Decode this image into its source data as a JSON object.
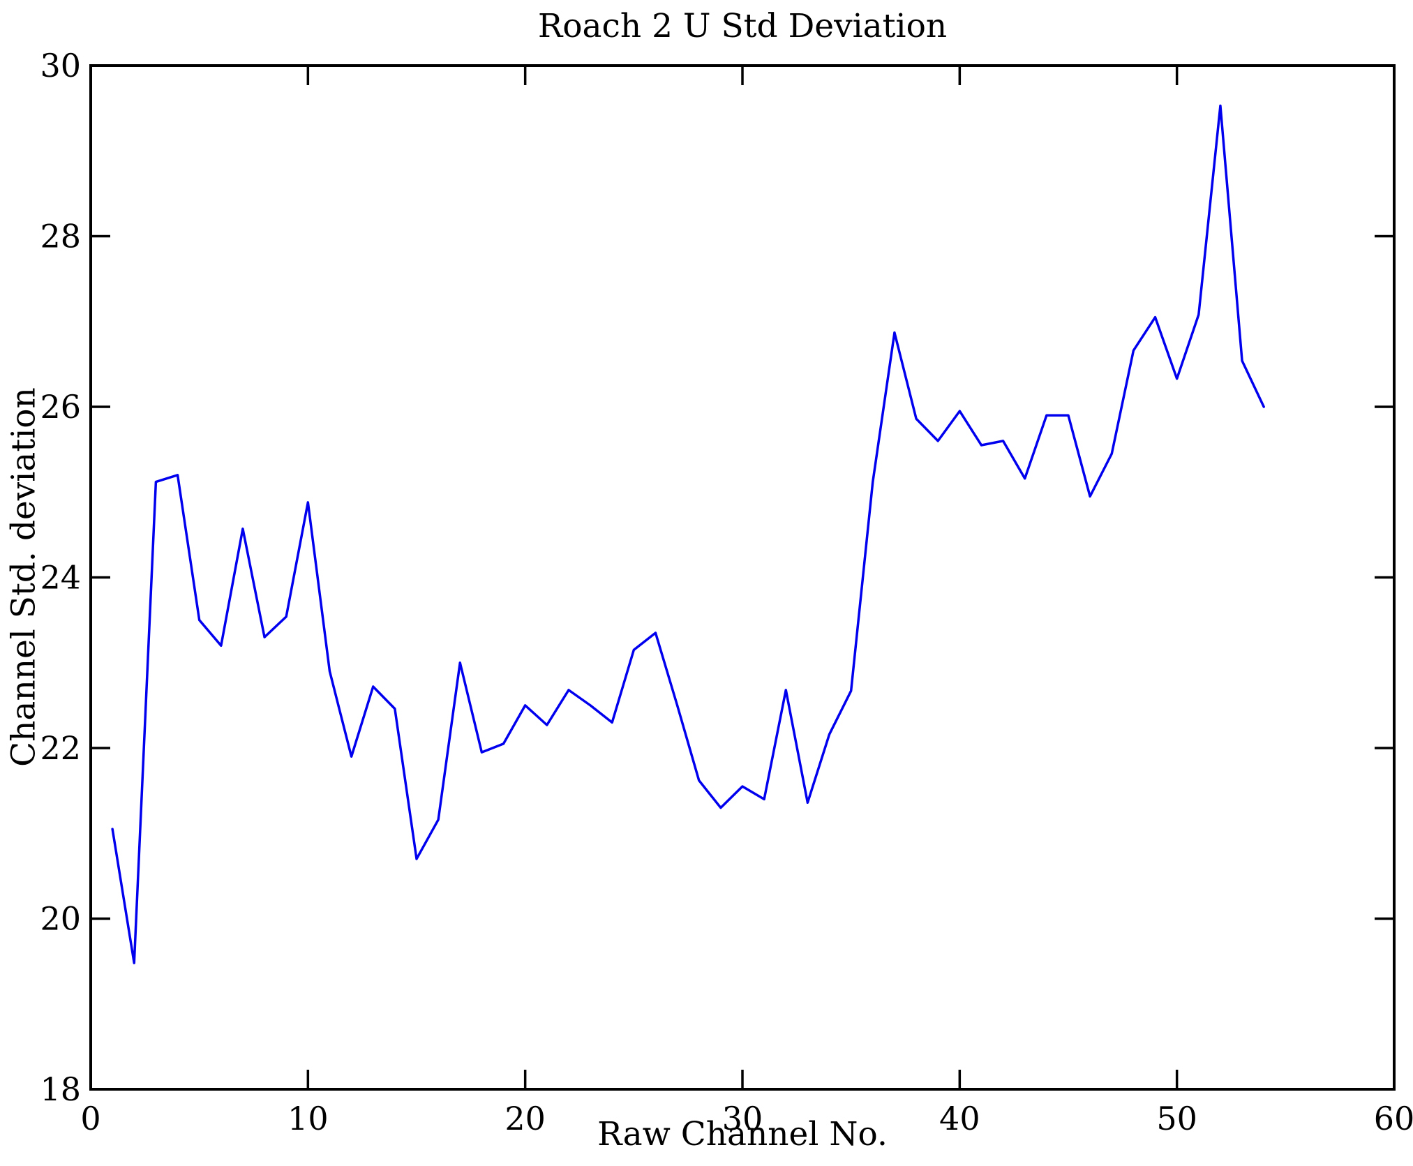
{
  "page": {
    "background": "#ffffff"
  },
  "chart_data": {
    "type": "line",
    "title": "Roach 2 U Std Deviation",
    "xlabel": "Raw Channel No.",
    "ylabel": "Channel Std. deviation",
    "xlim": [
      0,
      60
    ],
    "ylim": [
      18,
      30
    ],
    "xticks": [
      0,
      10,
      20,
      30,
      40,
      50,
      60
    ],
    "yticks": [
      18,
      20,
      22,
      24,
      26,
      28,
      30
    ],
    "grid": false,
    "legend_position": "none",
    "line_color": "#0000ee",
    "axis_color": "#000000",
    "x": [
      1,
      2,
      3,
      4,
      5,
      6,
      7,
      8,
      9,
      10,
      11,
      12,
      13,
      14,
      15,
      16,
      17,
      18,
      19,
      20,
      21,
      22,
      23,
      24,
      25,
      26,
      27,
      28,
      29,
      30,
      31,
      32,
      33,
      34,
      35,
      36,
      37,
      38,
      39,
      40,
      41,
      42,
      43,
      44,
      45,
      46,
      47,
      48,
      49,
      50,
      51,
      52,
      53,
      54
    ],
    "values": [
      21.05,
      19.48,
      25.12,
      25.2,
      23.5,
      23.2,
      24.57,
      23.3,
      23.54,
      24.88,
      22.9,
      21.9,
      22.72,
      22.46,
      20.7,
      21.16,
      23.0,
      21.95,
      22.05,
      22.5,
      22.27,
      22.68,
      22.5,
      22.3,
      23.15,
      23.35,
      22.5,
      21.62,
      21.3,
      21.55,
      21.4,
      22.68,
      21.36,
      22.16,
      22.67,
      25.12,
      26.87,
      25.86,
      25.6,
      25.95,
      25.55,
      25.6,
      25.16,
      25.9,
      25.9,
      24.95,
      25.45,
      26.66,
      27.05,
      26.33,
      27.08,
      29.53,
      26.54,
      26.0
    ]
  }
}
